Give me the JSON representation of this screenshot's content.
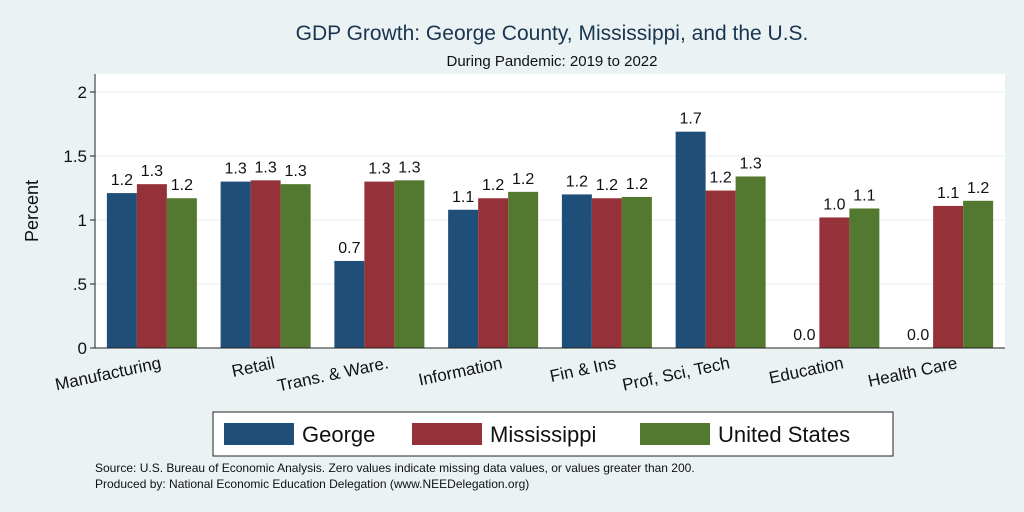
{
  "chart_data": {
    "type": "bar",
    "title": "GDP Growth: George County, Mississippi, and the U.S.",
    "subtitle": "During Pandemic: 2019 to 2022",
    "ylabel": "Percent",
    "xlabel": "",
    "ylim": [
      0,
      2.2
    ],
    "yticks": [
      0,
      0.5,
      1,
      1.5,
      2
    ],
    "ytick_labels": [
      "0",
      ".5",
      "1",
      "1.5",
      "2"
    ],
    "grid": true,
    "categories": [
      "Manufacturing",
      "Retail",
      "Trans. & Ware.",
      "Information",
      "Fin & Ins",
      "Prof, Sci, Tech",
      "Education",
      "Health Care"
    ],
    "series": [
      {
        "name": "George",
        "color": "#1f4e79",
        "values": [
          1.21,
          1.3,
          0.68,
          1.08,
          1.2,
          1.69,
          0.0,
          0.0
        ],
        "labels": [
          "1.2",
          "1.3",
          "0.7",
          "1.1",
          "1.2",
          "1.7",
          "0.0",
          "0.0"
        ]
      },
      {
        "name": "Mississippi",
        "color": "#953138",
        "values": [
          1.28,
          1.31,
          1.3,
          1.17,
          1.17,
          1.23,
          1.02,
          1.11
        ],
        "labels": [
          "1.3",
          "1.3",
          "1.3",
          "1.2",
          "1.2",
          "1.2",
          "1.0",
          "1.1"
        ]
      },
      {
        "name": "United States",
        "color": "#53782f",
        "values": [
          1.17,
          1.28,
          1.31,
          1.22,
          1.18,
          1.34,
          1.09,
          1.15
        ],
        "labels": [
          "1.2",
          "1.3",
          "1.3",
          "1.2",
          "1.2",
          "1.3",
          "1.1",
          "1.2"
        ]
      }
    ],
    "legend_position": "bottom"
  },
  "source_note": "Source: U.S. Bureau of Economic Analysis. Zero values indicate missing data values, or values greater than 200.",
  "produced_by": "Produced by: National Economic Education Delegation (www.NEEDelegation.org)"
}
